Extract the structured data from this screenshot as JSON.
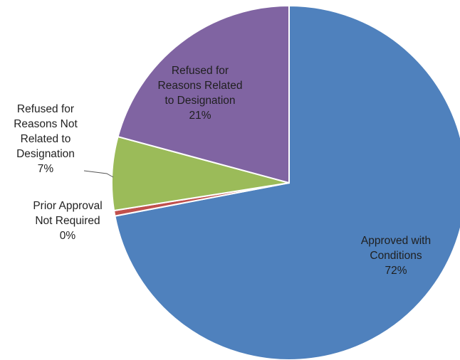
{
  "chart_data": {
    "type": "pie",
    "title": "",
    "start_angle_deg": 0,
    "direction": "clockwise",
    "slices": [
      {
        "label": "Approved with Conditions",
        "lines": [
          "Approved with",
          "Conditions",
          "72%"
        ],
        "value": 72,
        "percent_label": "72%",
        "color": "#4f81bd"
      },
      {
        "label": "Prior Approval Not Required",
        "lines": [
          "Prior Approval",
          "Not Required",
          "0%"
        ],
        "value": 0.5,
        "percent_label": "0%",
        "color": "#c0504d"
      },
      {
        "label": "Refused for Reasons Not Related to Designation",
        "lines": [
          "Refused for",
          "Reasons Not",
          "Related to",
          "Designation",
          "7%"
        ],
        "value": 6.7,
        "percent_label": "7%",
        "color": "#9bbb59"
      },
      {
        "label": "Refused for Reasons Related to Designation",
        "lines": [
          "Refused for",
          "Reasons Related",
          "to Designation",
          "21%"
        ],
        "value": 20.8,
        "percent_label": "21%",
        "color": "#8064a2"
      }
    ],
    "slice_border_color": "#ffffff"
  }
}
